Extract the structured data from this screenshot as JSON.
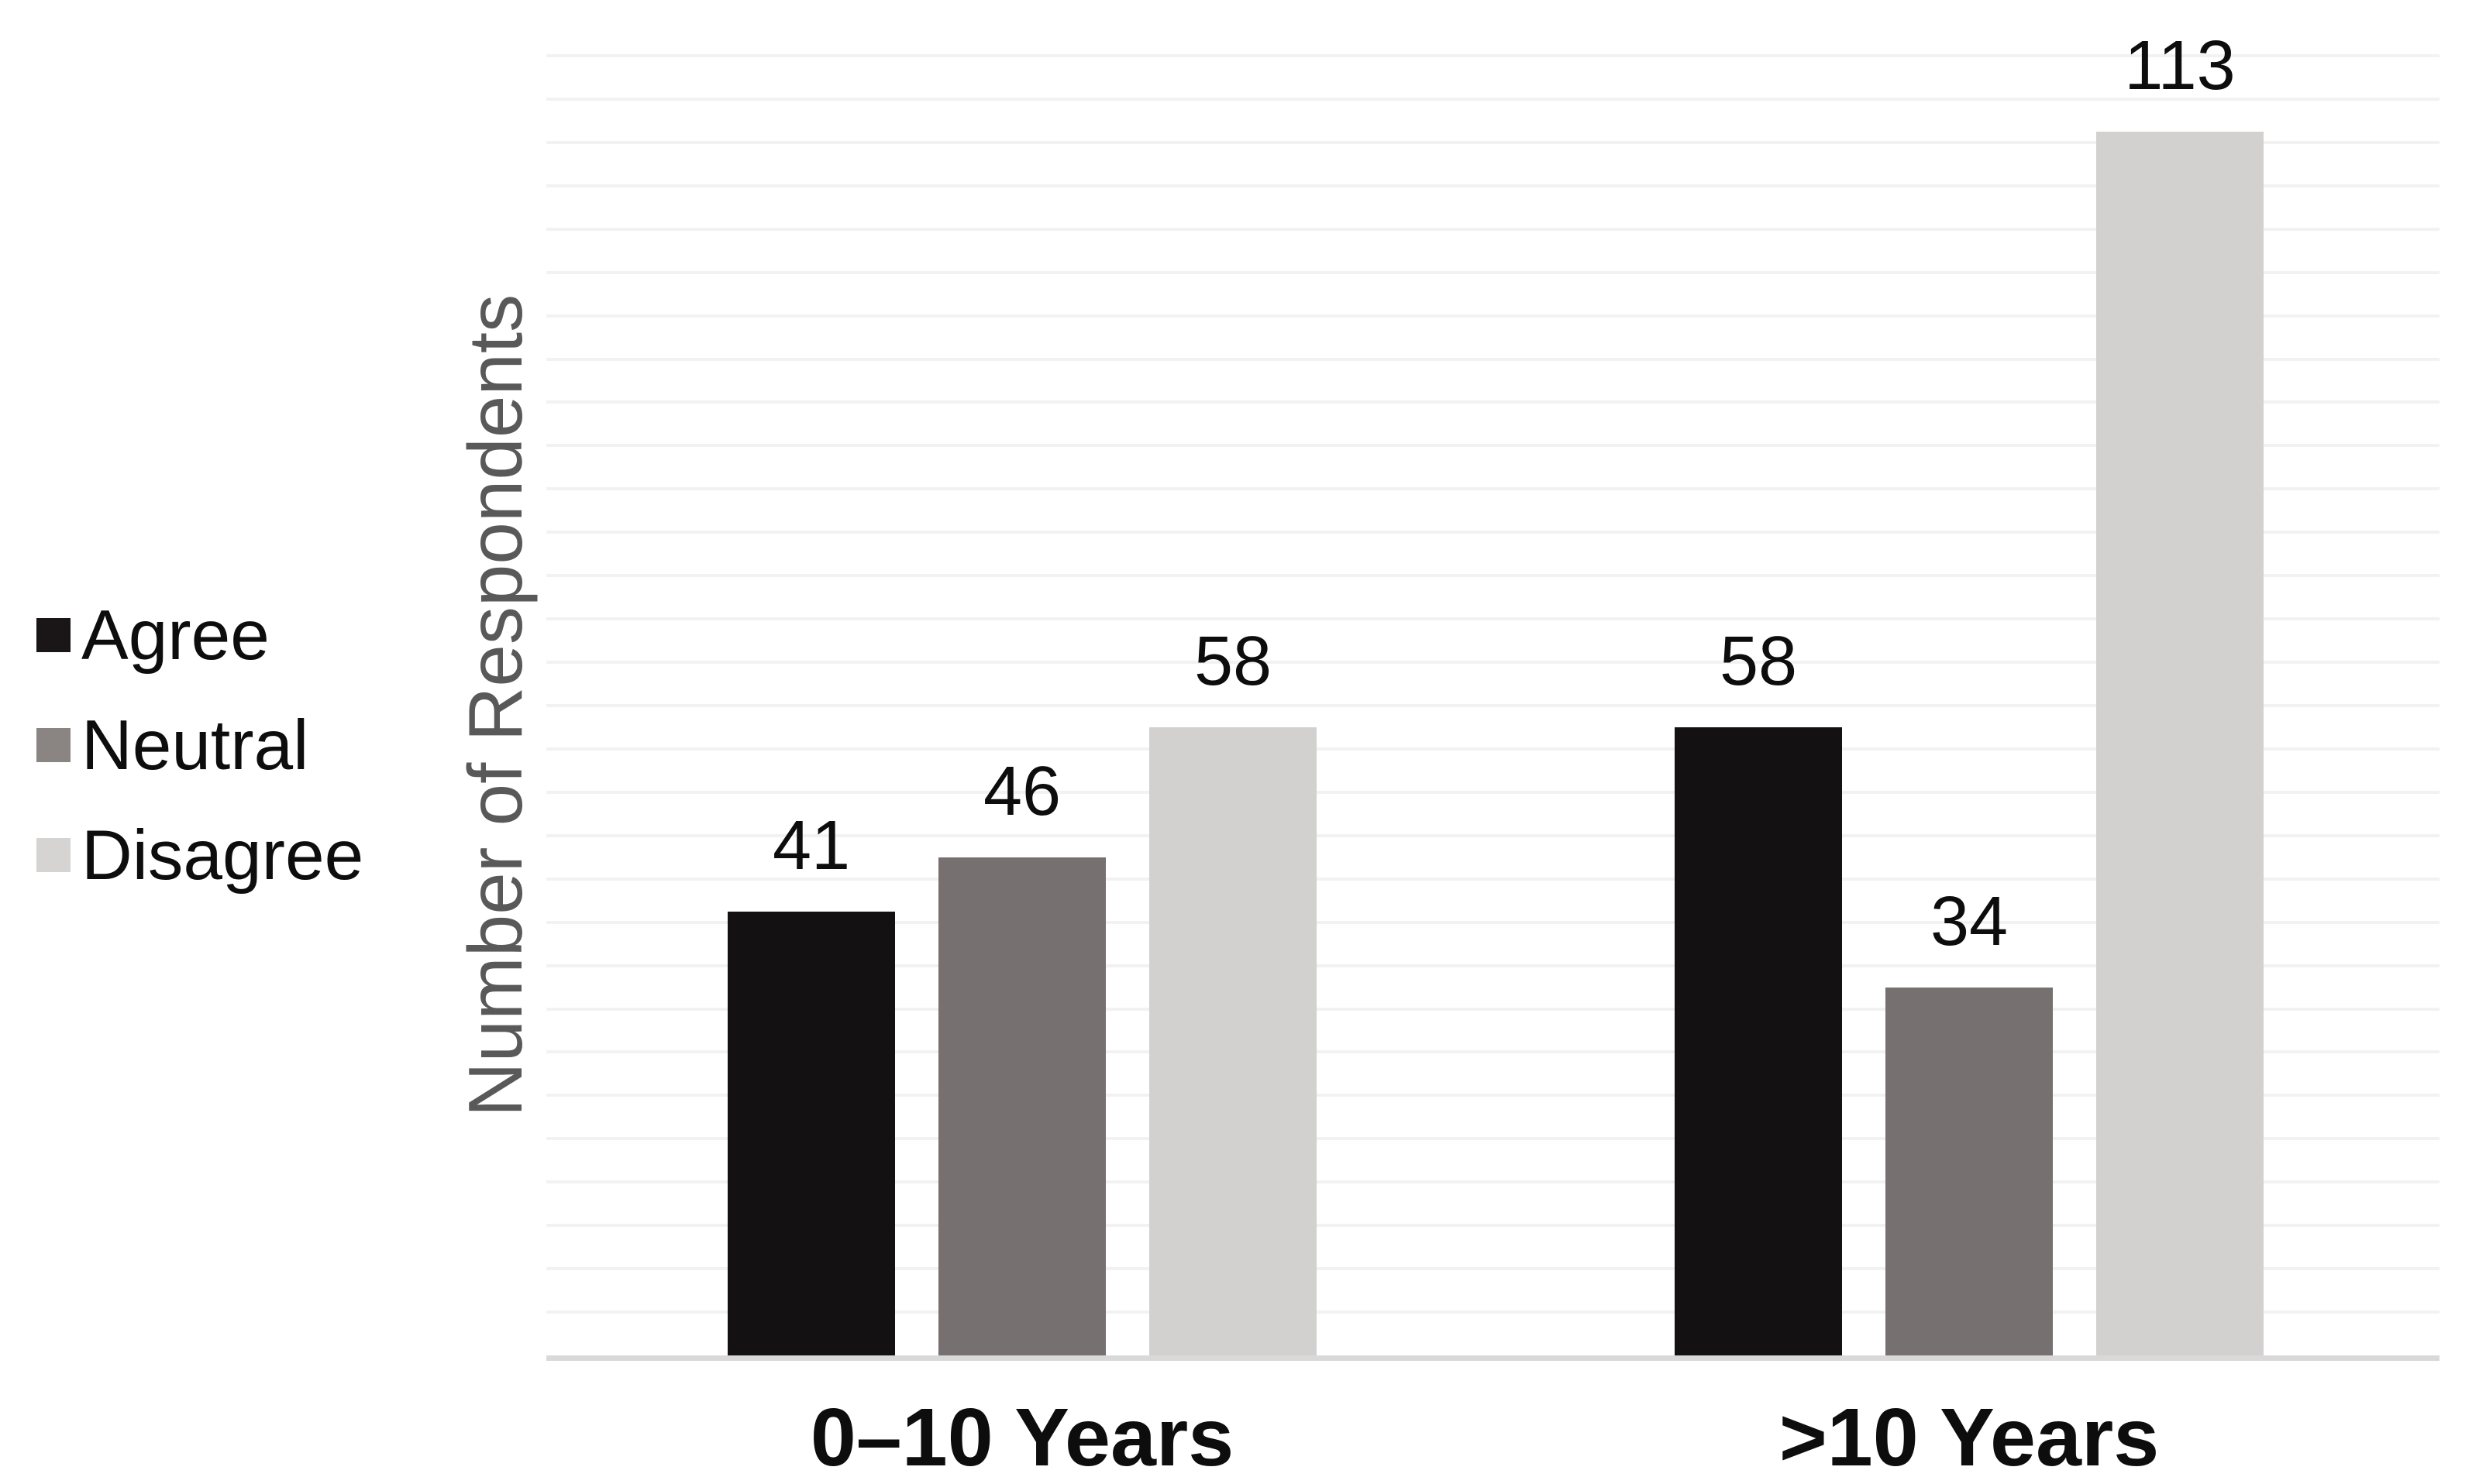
{
  "chart_data": {
    "type": "bar",
    "title": "",
    "categories": [
      "0–10 Years",
      ">10 Years"
    ],
    "series": [
      {
        "name": "Agree",
        "values": [
          41,
          58
        ],
        "color": "#141112",
        "legend_color": "#1a1516"
      },
      {
        "name": "Neutral",
        "values": [
          46,
          34
        ],
        "color": "#767170",
        "legend_color": "#8a8583"
      },
      {
        "name": "Disagree",
        "values": [
          58,
          113
        ],
        "color": "#d3d1d0",
        "legend_color": "#d6d4d3"
      }
    ],
    "xlabel": "",
    "ylabel": "Number of Respondents",
    "ylim": [
      0,
      120
    ],
    "grid_step": 4,
    "grid": "horizontal-light",
    "legend_position": "left-middle",
    "data_labels_shown": true
  },
  "styles": {
    "background": "#ffffff",
    "gridline_color": "#f2f2f2",
    "baseline_color": "#d9d9d9",
    "ylabel_color": "#595959",
    "text_color": "#0d0d0d"
  }
}
